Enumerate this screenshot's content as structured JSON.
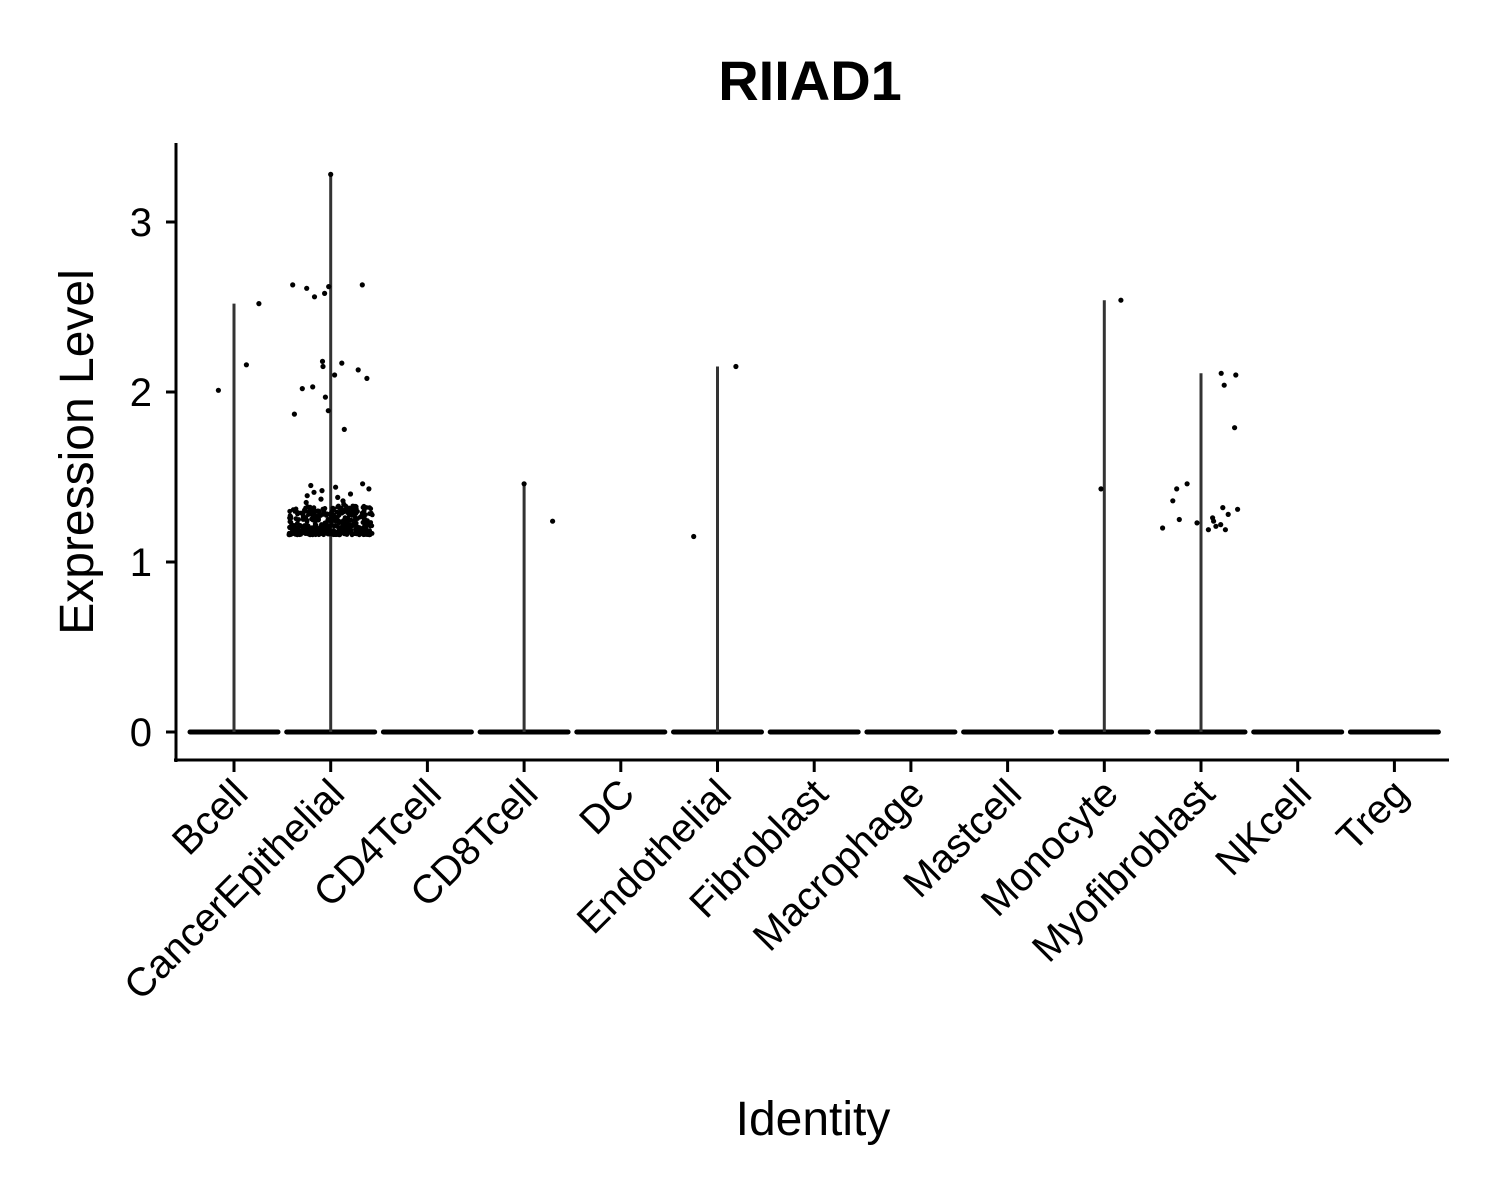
{
  "chart_data": {
    "type": "violin",
    "title": "RIIAD1",
    "xlabel": "Identity",
    "ylabel": "Expression Level",
    "ylim": [
      -0.16,
      3.45
    ],
    "yticks": [
      0,
      1,
      2,
      3
    ],
    "grid": false,
    "legend": "none",
    "categories": [
      "Bcell",
      "CancerEpithelial",
      "CD4Tcell",
      "CD8Tcell",
      "DC",
      "Endothelial",
      "Fibroblast",
      "Macrophage",
      "Mastcell",
      "Monocyte",
      "Myofibroblast",
      "NKcell",
      "Treg"
    ],
    "max_values": [
      2.52,
      3.28,
      0,
      1.46,
      0,
      2.15,
      0,
      0,
      0,
      2.54,
      2.11,
      0,
      0
    ],
    "points": {
      "Bcell": [
        2.16,
        2.01,
        2.52
      ],
      "CancerEpithelial": [
        3.28,
        2.63,
        2.56,
        2.63,
        2.62,
        2.61,
        2.58,
        2.17,
        2.13,
        2.15,
        2.08,
        2.18,
        2.1,
        2.03,
        2.02,
        1.97,
        1.89,
        1.87,
        1.78,
        1.46,
        1.45,
        1.44,
        1.43,
        1.42,
        1.41,
        1.4,
        1.39,
        1.38,
        1.37,
        1.36,
        1.35,
        1.34
      ],
      "CD8Tcell": [
        1.46,
        1.24
      ],
      "Endothelial": [
        1.15,
        2.15
      ],
      "Monocyte": [
        2.54,
        1.43
      ],
      "Myofibroblast": [
        2.11,
        2.1,
        2.04,
        1.79,
        1.46,
        1.43,
        1.36,
        1.32,
        1.31,
        1.28,
        1.26,
        1.25,
        1.24,
        1.23,
        1.22,
        1.21,
        1.2,
        1.19,
        1.19
      ]
    },
    "dense_clusters": {
      "CancerEpithelial": {
        "range": [
          1.16,
          1.33
        ],
        "count": 400
      }
    },
    "zero_band": true
  }
}
